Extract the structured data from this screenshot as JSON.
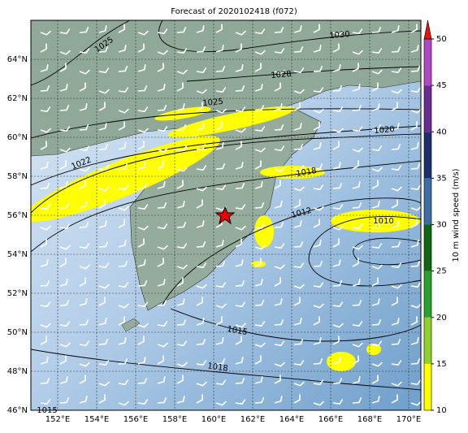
{
  "title": "Forecast of 2020102418 (f072)",
  "lon_labels": [
    "152°E",
    "154°E",
    "156°E",
    "158°E",
    "160°E",
    "162°E",
    "164°E",
    "166°E",
    "168°E",
    "170°E"
  ],
  "lat_labels": [
    "46°N",
    "48°N",
    "50°N",
    "52°N",
    "54°N",
    "56°N",
    "58°N",
    "60°N",
    "62°N",
    "64°N"
  ],
  "isobar_labels": [
    "1025",
    "1030",
    "1028",
    "1025",
    "1020",
    "1022",
    "1018",
    "1012",
    "1010",
    "1015",
    "1018",
    "1015"
  ],
  "colorbar": {
    "label": "10 m wind speed (m/s)",
    "ticks": [
      10,
      15,
      20,
      25,
      30,
      35,
      40,
      45,
      50
    ],
    "colors": [
      "#ffff00",
      "#8fd12b",
      "#2ca02c",
      "#116611",
      "#3a6ea5",
      "#1f2f6e",
      "#6a2c91",
      "#b047c4"
    ],
    "extend_color": "#e0150f"
  }
}
